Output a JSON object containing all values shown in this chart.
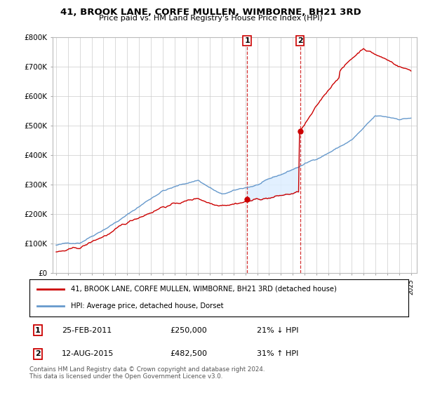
{
  "title": "41, BROOK LANE, CORFE MULLEN, WIMBORNE, BH21 3RD",
  "subtitle": "Price paid vs. HM Land Registry's House Price Index (HPI)",
  "ylim": [
    0,
    800000
  ],
  "yticks": [
    0,
    100000,
    200000,
    300000,
    400000,
    500000,
    600000,
    700000,
    800000
  ],
  "ytick_labels": [
    "£0",
    "£100K",
    "£200K",
    "£300K",
    "£400K",
    "£500K",
    "£600K",
    "£700K",
    "£800K"
  ],
  "grid_color": "#cccccc",
  "legend_entries": [
    "41, BROOK LANE, CORFE MULLEN, WIMBORNE, BH21 3RD (detached house)",
    "HPI: Average price, detached house, Dorset"
  ],
  "sale1_date": 2011.15,
  "sale1_price": 250000,
  "sale2_date": 2015.62,
  "sale2_price": 482500,
  "footnote": "Contains HM Land Registry data © Crown copyright and database right 2024.\nThis data is licensed under the Open Government Licence v3.0.",
  "hpi_color": "#6699cc",
  "price_color": "#cc0000",
  "shade_color": "#ddeeff",
  "vline_color": "#cc0000"
}
